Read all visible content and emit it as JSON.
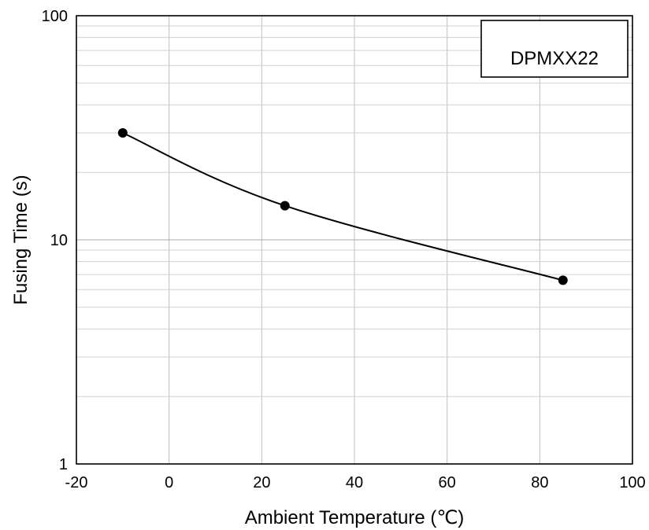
{
  "chart_data": {
    "type": "line",
    "title": "",
    "xlabel": "Ambient Temperature (℃)",
    "ylabel": "Fusing Time (s)",
    "xlim": [
      -20,
      100
    ],
    "ylim": [
      1,
      100
    ],
    "yscale": "log",
    "grid": true,
    "xticks": [
      "-20",
      "0",
      "20",
      "40",
      "60",
      "80",
      "100"
    ],
    "yticks": [
      "1",
      "10",
      "100"
    ],
    "legend": {
      "label": "DPMXX22",
      "position": "top-right"
    },
    "series": [
      {
        "name": "DPMXX22",
        "x": [
          -10,
          25,
          85
        ],
        "y": [
          30,
          14.2,
          6.6
        ],
        "color": "#000000",
        "marker": "circle"
      }
    ]
  }
}
